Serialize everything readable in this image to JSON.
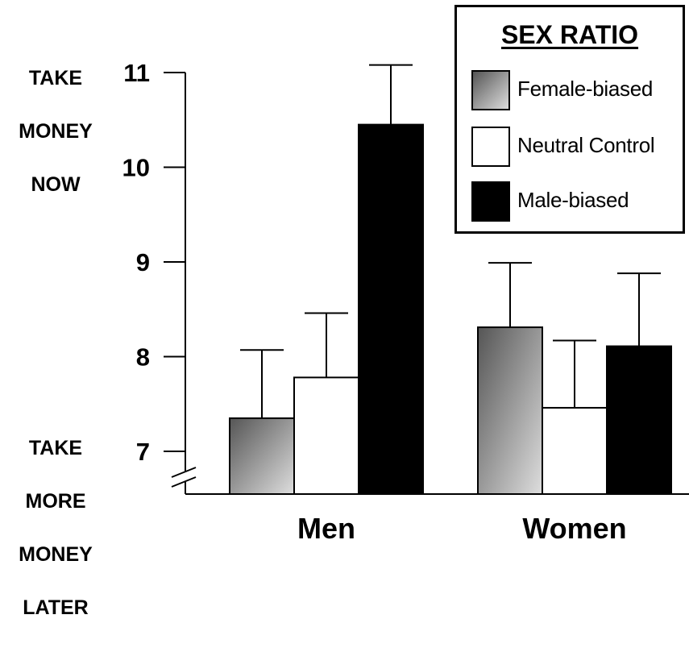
{
  "annotations": {
    "top": [
      "TAKE",
      "MONEY",
      "NOW"
    ],
    "bottom": [
      "TAKE",
      "MORE",
      "MONEY",
      "LATER"
    ]
  },
  "legend": {
    "title": "SEX RATIO",
    "items": [
      {
        "label": "Female-biased",
        "fill": "gradient-gray"
      },
      {
        "label": "Neutral Control",
        "fill": "#ffffff"
      },
      {
        "label": "Male-biased",
        "fill": "#000000"
      }
    ]
  },
  "chart_data": {
    "type": "bar",
    "title": "",
    "xlabel": "",
    "ylabel": "",
    "categories": [
      "Men",
      "Women"
    ],
    "y_ticks": [
      "7",
      "8",
      "9",
      "10",
      "11"
    ],
    "ylim": [
      6.55,
      11
    ],
    "axis_break": true,
    "error_bars": true,
    "grid": false,
    "legend_position": "top-right",
    "series": [
      {
        "name": "Female-biased",
        "values": [
          7.35,
          8.31
        ],
        "errors": [
          0.72,
          0.68
        ],
        "color": "gradient-gray"
      },
      {
        "name": "Neutral Control",
        "values": [
          7.78,
          7.46
        ],
        "errors": [
          0.68,
          0.71
        ],
        "color": "#ffffff"
      },
      {
        "name": "Male-biased",
        "values": [
          10.45,
          8.11
        ],
        "errors": [
          0.63,
          0.77
        ],
        "color": "#000000"
      }
    ]
  }
}
